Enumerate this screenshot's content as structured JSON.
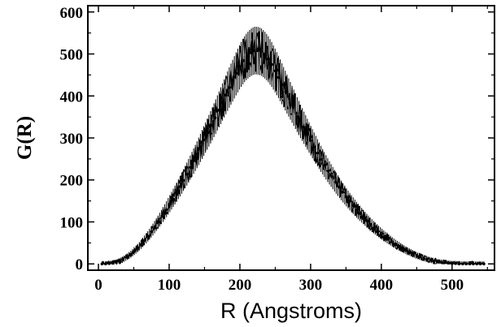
{
  "chart_data": {
    "type": "scatter",
    "title": "",
    "xlabel": "R (Angstroms)",
    "ylabel": "G(R)",
    "xlim": [
      -15,
      560
    ],
    "ylim": [
      -15,
      615
    ],
    "grid": false,
    "legend": "none",
    "xticks": [
      0,
      100,
      200,
      300,
      400,
      500
    ],
    "yticks": [
      0,
      100,
      200,
      300,
      400,
      500,
      600
    ],
    "xtick_labels": [
      "0",
      "100",
      "200",
      "300",
      "400",
      "500"
    ],
    "ytick_labels": [
      "0",
      "100",
      "200",
      "300",
      "400",
      "500",
      "600"
    ],
    "marker_color": "#000000",
    "series": [
      {
        "x": [
          5,
          10,
          15,
          20,
          25,
          30,
          35,
          40,
          45,
          50,
          55,
          60,
          65,
          70,
          75,
          80,
          85,
          90,
          95,
          100,
          105,
          110,
          115,
          120,
          125,
          130,
          135,
          140,
          145,
          150,
          155,
          160,
          165,
          170,
          175,
          180,
          185,
          190,
          195,
          200,
          205,
          210,
          215,
          220,
          225,
          230,
          235,
          240,
          245,
          250,
          255,
          260,
          265,
          270,
          275,
          280,
          285,
          290,
          295,
          300,
          305,
          310,
          315,
          320,
          325,
          330,
          335,
          340,
          345,
          350,
          355,
          360,
          365,
          370,
          375,
          380,
          385,
          390,
          395,
          400,
          405,
          410,
          415,
          420,
          425,
          430,
          435,
          440,
          445,
          450,
          455,
          460,
          465,
          470,
          475,
          480,
          485,
          490,
          495,
          500,
          505,
          510,
          515,
          520,
          525,
          530,
          535,
          540,
          545
        ],
        "y": [
          0,
          0,
          1,
          2,
          4,
          7,
          11,
          16,
          22,
          29,
          37,
          46,
          56,
          66,
          77,
          89,
          101,
          114,
          127,
          141,
          155,
          169,
          184,
          199,
          214,
          230,
          246,
          262,
          279,
          296,
          313,
          330,
          348,
          366,
          384,
          402,
          420,
          437,
          454,
          470,
          484,
          495,
          503,
          508,
          508,
          505,
          498,
          488,
          475,
          460,
          444,
          427,
          410,
          393,
          376,
          359,
          342,
          326,
          310,
          294,
          279,
          264,
          249,
          235,
          221,
          208,
          195,
          183,
          171,
          160,
          149,
          139,
          129,
          120,
          111,
          102,
          94,
          86,
          79,
          72,
          65,
          59,
          53,
          47,
          42,
          37,
          32,
          28,
          24,
          20,
          17,
          14,
          11,
          9,
          7,
          5,
          4,
          3,
          2,
          1,
          1,
          0,
          0,
          0,
          0,
          0,
          0,
          0,
          0
        ]
      }
    ]
  }
}
